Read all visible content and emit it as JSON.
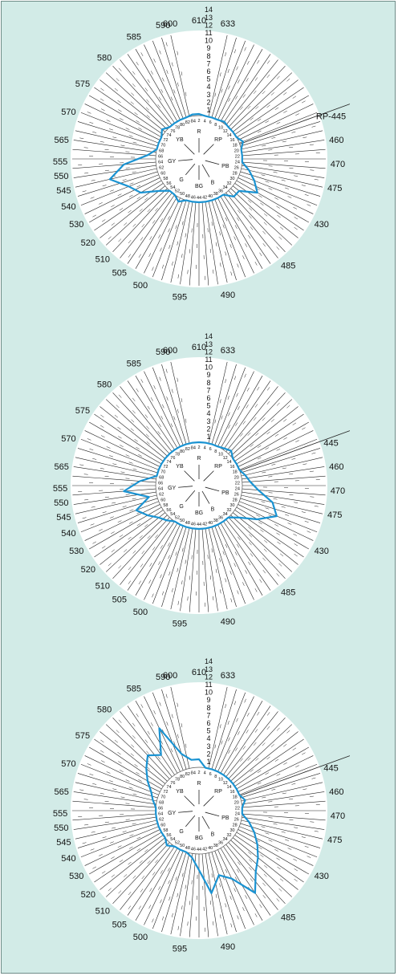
{
  "chart_data": [
    {
      "type": "radar",
      "title": "",
      "outer_labels": [
        "600",
        "610",
        "633",
        "RP-445",
        "460",
        "470",
        "475",
        "430",
        "485",
        "490",
        "595",
        "500",
        "505",
        "510",
        "520",
        "530",
        "540",
        "545",
        "550",
        "555",
        "565",
        "570",
        "575",
        "580",
        "585",
        "590"
      ],
      "scale_labels": [
        "1",
        "2",
        "3",
        "4",
        "5",
        "6",
        "7",
        "8",
        "9",
        "10",
        "11",
        "12",
        "13",
        "14"
      ],
      "cap_numbers": [
        "2",
        "4",
        "6",
        "8",
        "10",
        "12",
        "14",
        "16",
        "18",
        "20",
        "22",
        "24",
        "26",
        "28",
        "30",
        "32",
        "34",
        "36",
        "38",
        "40",
        "42",
        "44",
        "46",
        "48",
        "50",
        "52",
        "54",
        "56",
        "58",
        "60",
        "62",
        "64",
        "66",
        "68",
        "70",
        "72",
        "74",
        "76",
        "78",
        "80",
        "82",
        "84"
      ],
      "hue_labels": [
        "R",
        "RP",
        "PB",
        "B",
        "BG",
        "G",
        "GY",
        "YB"
      ],
      "series": [
        {
          "name": "",
          "values": [
            1.2,
            1,
            1,
            1,
            1.2,
            1,
            1,
            1,
            1.5,
            1,
            1,
            1,
            2,
            3,
            4,
            2,
            2,
            1,
            1,
            1,
            1,
            1,
            1,
            1,
            1.5,
            1,
            1,
            2,
            4,
            5,
            7,
            5,
            2,
            1,
            1,
            1,
            1.5,
            1,
            1,
            1,
            1,
            1.2
          ]
        }
      ]
    },
    {
      "type": "radar",
      "title": "",
      "outer_labels": [
        "600",
        "610",
        "633",
        "445",
        "460",
        "470",
        "475",
        "430",
        "485",
        "490",
        "595",
        "500",
        "505",
        "510",
        "520",
        "530",
        "540",
        "545",
        "550",
        "555",
        "565",
        "570",
        "575",
        "580",
        "585",
        "590"
      ],
      "scale_labels": [
        "1",
        "2",
        "3",
        "4",
        "5",
        "6",
        "7",
        "8",
        "9",
        "10",
        "11",
        "12",
        "13",
        "14"
      ],
      "cap_numbers": [
        "2",
        "4",
        "6",
        "8",
        "10",
        "12",
        "14",
        "16",
        "18",
        "20",
        "22",
        "24",
        "26",
        "28",
        "30",
        "32",
        "34",
        "36",
        "38",
        "40",
        "42",
        "44",
        "46",
        "48",
        "50",
        "52",
        "54",
        "56",
        "58",
        "60",
        "62",
        "64",
        "66",
        "68",
        "70",
        "72",
        "74",
        "76",
        "78",
        "80",
        "82",
        "84"
      ],
      "hue_labels": [
        "R",
        "RP",
        "PB",
        "B",
        "BG",
        "G",
        "GY",
        "YB"
      ],
      "series": [
        {
          "name": "",
          "values": [
            1,
            1,
            1,
            1,
            1.2,
            1.5,
            1,
            1,
            1,
            1.5,
            2,
            3,
            5,
            6,
            4,
            2,
            1,
            1,
            1,
            1,
            1,
            1,
            1,
            1,
            1,
            1,
            1.5,
            2,
            3,
            4,
            2,
            5,
            3,
            1,
            1,
            1,
            1,
            1,
            1,
            1,
            1,
            1
          ]
        }
      ]
    },
    {
      "type": "radar",
      "title": "",
      "outer_labels": [
        "600",
        "610",
        "633",
        "445",
        "460",
        "470",
        "475",
        "430",
        "485",
        "490",
        "595",
        "500",
        "505",
        "510",
        "520",
        "530",
        "540",
        "545",
        "550",
        "555",
        "565",
        "570",
        "575",
        "580",
        "585",
        "590"
      ],
      "scale_labels": [
        "1",
        "2",
        "3",
        "4",
        "5",
        "6",
        "7",
        "8",
        "9",
        "10",
        "11",
        "12",
        "13",
        "14"
      ],
      "cap_numbers": [
        "2",
        "4",
        "6",
        "8",
        "10",
        "12",
        "14",
        "16",
        "18",
        "20",
        "22",
        "24",
        "26",
        "28",
        "30",
        "32",
        "34",
        "36",
        "38",
        "40",
        "42",
        "44",
        "46",
        "48",
        "50",
        "52",
        "54",
        "56",
        "58",
        "60",
        "62",
        "64",
        "66",
        "68",
        "70",
        "72",
        "74",
        "76",
        "78",
        "80",
        "82",
        "84"
      ],
      "hue_labels": [
        "R",
        "RP",
        "PB",
        "B",
        "BG",
        "G",
        "GY",
        "YB"
      ],
      "series": [
        {
          "name": "",
          "values": [
            2,
            1,
            1,
            1,
            1,
            1,
            1,
            1,
            1,
            1.5,
            1,
            1,
            2,
            3,
            4,
            5,
            6,
            8,
            5,
            4,
            6,
            3,
            1.5,
            1,
            1,
            1,
            1.5,
            1,
            1,
            1,
            1,
            1,
            1,
            1.5,
            2,
            3,
            4,
            5,
            4,
            7,
            3,
            2
          ]
        }
      ]
    }
  ]
}
